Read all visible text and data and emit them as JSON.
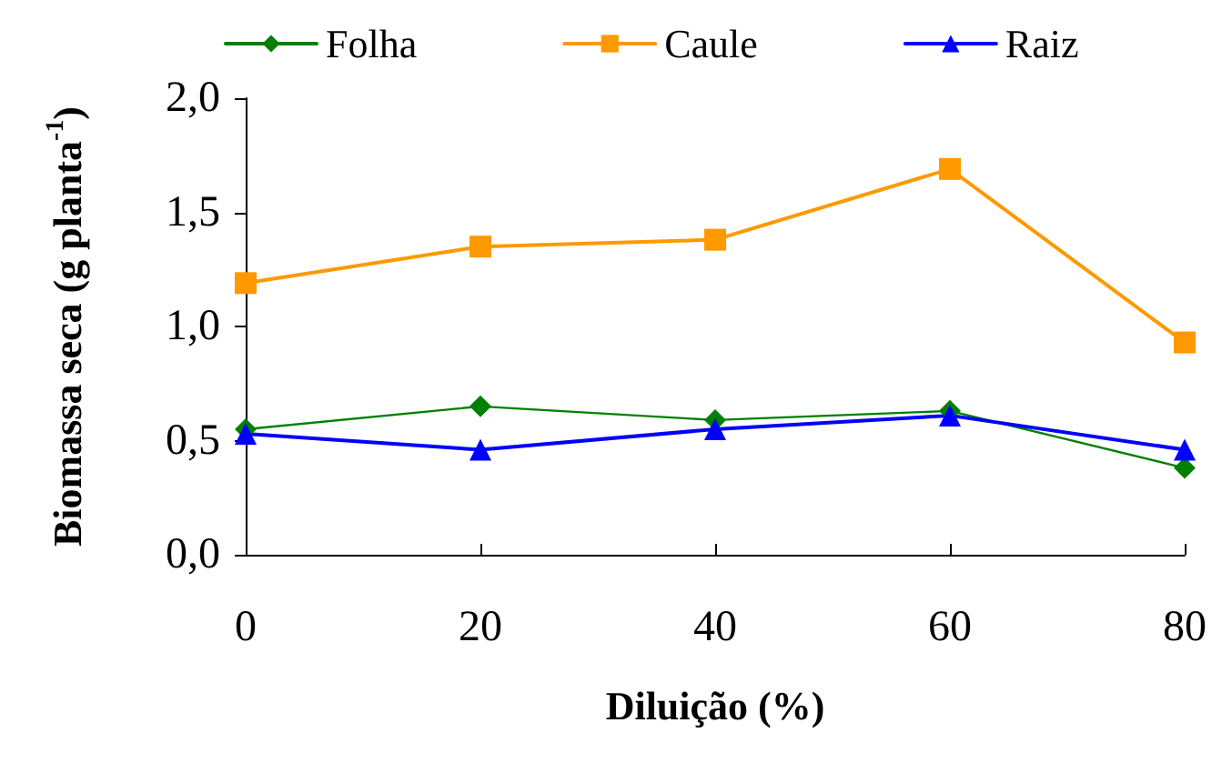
{
  "chart_data": {
    "type": "line",
    "xlabel": "Diluição (%)",
    "ylabel": "Biomassa seca (g planta$^{-1}$)",
    "x": [
      0,
      20,
      40,
      60,
      80
    ],
    "series": [
      {
        "name": "Folha",
        "color": "#008000",
        "marker": "diamond",
        "values": [
          0.55,
          0.65,
          0.59,
          0.63,
          0.38
        ]
      },
      {
        "name": "Caule",
        "color": "#ff9900",
        "marker": "square",
        "values": [
          1.19,
          1.35,
          1.38,
          1.69,
          0.93
        ]
      },
      {
        "name": "Raiz",
        "color": "#0000ff",
        "marker": "triangle",
        "values": [
          0.53,
          0.46,
          0.55,
          0.61,
          0.46
        ]
      }
    ],
    "xlim": [
      0,
      80
    ],
    "xticks": [
      0,
      20,
      40,
      60,
      80
    ],
    "ylim": [
      0,
      2
    ],
    "yticks": [
      {
        "value": 0,
        "label": "0,0"
      },
      {
        "value": 0.5,
        "label": "0,5"
      },
      {
        "value": 1,
        "label": "1,0"
      },
      {
        "value": 1.5,
        "label": "1,5"
      },
      {
        "value": 2,
        "label": "2,0"
      }
    ],
    "grid": false,
    "legend": "top",
    "line_style": "solid"
  }
}
